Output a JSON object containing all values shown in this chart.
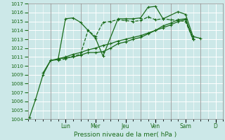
{
  "title": "",
  "xlabel": "Pression niveau de la mer( hPa )",
  "ylim": [
    1004,
    1017
  ],
  "xlim": [
    0,
    13
  ],
  "yticks": [
    1004,
    1005,
    1006,
    1007,
    1008,
    1009,
    1010,
    1011,
    1012,
    1013,
    1014,
    1015,
    1016,
    1017
  ],
  "day_labels": [
    "Lun",
    "Mer",
    "Jeu",
    "Ven",
    "Sam",
    "D"
  ],
  "day_positions": [
    2.5,
    4.5,
    6.5,
    8.5,
    10.5,
    12.5
  ],
  "background_color": "#cce8e8",
  "grid_color": "#ffffff",
  "line_color": "#1a6b1a",
  "lines": [
    {
      "x": [
        0.1,
        0.5,
        1.0,
        1.5,
        2.0,
        2.5,
        3.0,
        3.5,
        4.5,
        5.0,
        6.0,
        6.5,
        7.0,
        7.5,
        8.0,
        8.5,
        9.0,
        10.0,
        10.5,
        11.0,
        11.5
      ],
      "y": [
        1004.2,
        1006.2,
        1009.0,
        1010.6,
        1010.7,
        1015.3,
        1015.4,
        1014.9,
        1013.1,
        1011.1,
        1015.3,
        1015.3,
        1015.3,
        1015.4,
        1016.6,
        1016.7,
        1015.3,
        1016.1,
        1015.8,
        1013.3,
        1013.1
      ],
      "style": "-",
      "marker": "+"
    },
    {
      "x": [
        1.0,
        1.5,
        2.0,
        2.5,
        3.0,
        3.5,
        4.0,
        4.5,
        5.0,
        5.5,
        6.0,
        6.5,
        7.0,
        7.5,
        8.0,
        8.5,
        9.0,
        9.5,
        10.0,
        10.5,
        11.0
      ],
      "y": [
        1009.2,
        1010.6,
        1010.8,
        1010.9,
        1011.0,
        1011.2,
        1011.5,
        1011.5,
        1011.6,
        1012.0,
        1012.5,
        1012.7,
        1013.0,
        1013.2,
        1013.6,
        1014.0,
        1014.5,
        1014.8,
        1015.2,
        1015.3,
        1013.0
      ],
      "style": "-",
      "marker": "+"
    },
    {
      "x": [
        2.0,
        2.5,
        3.0,
        3.5,
        4.0,
        4.5,
        5.0,
        5.5,
        6.0,
        6.5,
        7.0,
        7.5,
        8.0,
        8.5,
        9.0,
        9.5,
        10.0,
        10.5,
        11.0
      ],
      "y": [
        1010.6,
        1010.8,
        1011.1,
        1011.3,
        1014.0,
        1013.3,
        1014.9,
        1015.0,
        1015.2,
        1015.1,
        1015.0,
        1015.1,
        1015.5,
        1015.2,
        1015.3,
        1015.2,
        1015.1,
        1015.0,
        1013.0
      ],
      "style": "--",
      "marker": "+"
    },
    {
      "x": [
        2.0,
        2.5,
        3.0,
        3.5,
        4.0,
        4.5,
        5.0,
        5.5,
        6.0,
        6.5,
        7.0,
        7.5,
        8.0,
        8.5,
        9.0,
        9.5,
        10.0,
        10.5,
        11.0
      ],
      "y": [
        1010.8,
        1011.0,
        1011.3,
        1011.5,
        1011.8,
        1012.0,
        1012.3,
        1012.5,
        1012.8,
        1013.0,
        1013.2,
        1013.4,
        1013.7,
        1014.0,
        1014.3,
        1014.6,
        1015.0,
        1015.2,
        1013.0
      ],
      "style": "-",
      "marker": "+"
    }
  ]
}
